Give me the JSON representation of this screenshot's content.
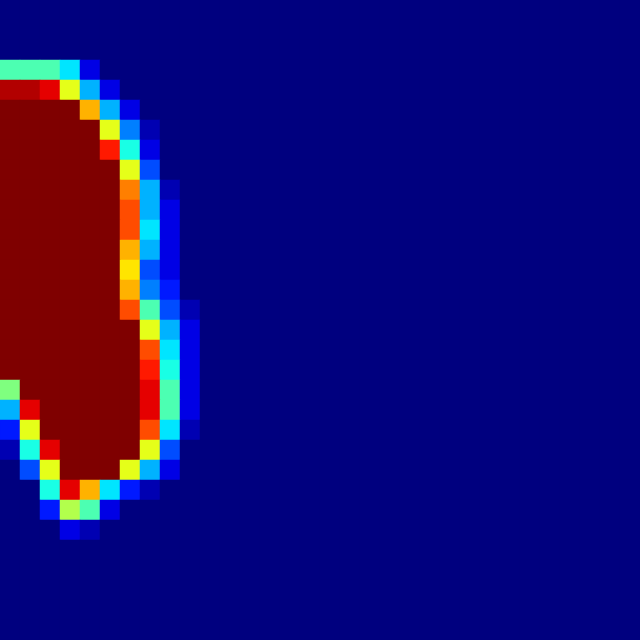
{
  "chart_data": {
    "type": "heatmap",
    "tick_labels": false,
    "cells": [
      [
        0,
        0,
        0,
        0,
        0,
        0,
        0,
        0,
        0,
        0,
        0,
        0,
        0,
        0,
        0,
        0,
        0,
        0,
        0,
        0,
        0,
        0,
        0,
        0,
        0,
        0,
        0,
        0,
        0,
        0,
        0,
        0
      ],
      [
        0,
        0,
        0,
        0,
        0,
        0,
        0,
        0,
        0,
        0,
        0,
        0,
        0,
        0,
        0,
        0,
        0,
        0,
        0,
        0,
        0,
        0,
        0,
        0,
        0,
        0,
        0,
        0,
        0,
        0,
        0,
        0
      ],
      [
        0,
        0,
        0,
        0,
        0,
        0,
        0,
        0,
        0,
        0,
        0,
        0,
        0,
        0,
        0,
        0,
        0,
        0,
        0,
        0,
        0,
        0,
        0,
        0,
        0,
        0,
        0,
        0,
        0,
        0,
        0,
        0
      ],
      [
        0.45,
        0.45,
        0.45,
        0.35,
        0.1,
        0,
        0,
        0,
        0,
        0,
        0,
        0,
        0,
        0,
        0,
        0,
        0,
        0,
        0,
        0,
        0,
        0,
        0,
        0,
        0,
        0,
        0,
        0,
        0,
        0,
        0,
        0
      ],
      [
        0.95,
        0.95,
        0.9,
        0.6,
        0.3,
        0.1,
        0,
        0,
        0,
        0,
        0,
        0,
        0,
        0,
        0,
        0,
        0,
        0,
        0,
        0,
        0,
        0,
        0,
        0,
        0,
        0,
        0,
        0,
        0,
        0,
        0,
        0
      ],
      [
        1,
        1,
        1,
        1,
        0.7,
        0.3,
        0.1,
        0,
        0,
        0,
        0,
        0,
        0,
        0,
        0,
        0,
        0,
        0,
        0,
        0,
        0,
        0,
        0,
        0,
        0,
        0,
        0,
        0,
        0,
        0,
        0,
        0
      ],
      [
        1,
        1,
        1,
        1,
        1,
        0.6,
        0.25,
        0.05,
        0,
        0,
        0,
        0,
        0,
        0,
        0,
        0,
        0,
        0,
        0,
        0,
        0,
        0,
        0,
        0,
        0,
        0,
        0,
        0,
        0,
        0,
        0,
        0
      ],
      [
        1,
        1,
        1,
        1,
        1,
        0.85,
        0.4,
        0.1,
        0,
        0,
        0,
        0,
        0,
        0,
        0,
        0,
        0,
        0,
        0,
        0,
        0,
        0,
        0,
        0,
        0,
        0,
        0,
        0,
        0,
        0,
        0,
        0
      ],
      [
        1,
        1,
        1,
        1,
        1,
        1,
        0.6,
        0.2,
        0,
        0,
        0,
        0,
        0,
        0,
        0,
        0,
        0,
        0,
        0,
        0,
        0,
        0,
        0,
        0,
        0,
        0,
        0,
        0,
        0,
        0,
        0,
        0
      ],
      [
        1,
        1,
        1,
        1,
        1,
        1,
        0.75,
        0.3,
        0.05,
        0,
        0,
        0,
        0,
        0,
        0,
        0,
        0,
        0,
        0,
        0,
        0,
        0,
        0,
        0,
        0,
        0,
        0,
        0,
        0,
        0,
        0,
        0
      ],
      [
        1,
        1,
        1,
        1,
        1,
        1,
        0.8,
        0.3,
        0.1,
        0,
        0,
        0,
        0,
        0,
        0,
        0,
        0,
        0,
        0,
        0,
        0,
        0,
        0,
        0,
        0,
        0,
        0,
        0,
        0,
        0,
        0,
        0
      ],
      [
        1,
        1,
        1,
        1,
        1,
        1,
        0.8,
        0.35,
        0.1,
        0,
        0,
        0,
        0,
        0,
        0,
        0,
        0,
        0,
        0,
        0,
        0,
        0,
        0,
        0,
        0,
        0,
        0,
        0,
        0,
        0,
        0,
        0
      ],
      [
        1,
        1,
        1,
        1,
        1,
        1,
        0.7,
        0.3,
        0.1,
        0,
        0,
        0,
        0,
        0,
        0,
        0,
        0,
        0,
        0,
        0,
        0,
        0,
        0,
        0,
        0,
        0,
        0,
        0,
        0,
        0,
        0,
        0
      ],
      [
        1,
        1,
        1,
        1,
        1,
        1,
        0.65,
        0.2,
        0.1,
        0,
        0,
        0,
        0,
        0,
        0,
        0,
        0,
        0,
        0,
        0,
        0,
        0,
        0,
        0,
        0,
        0,
        0,
        0,
        0,
        0,
        0,
        0
      ],
      [
        1,
        1,
        1,
        1,
        1,
        1,
        0.7,
        0.25,
        0.15,
        0,
        0,
        0,
        0,
        0,
        0,
        0,
        0,
        0,
        0,
        0,
        0,
        0,
        0,
        0,
        0,
        0,
        0,
        0,
        0,
        0,
        0,
        0
      ],
      [
        1,
        1,
        1,
        1,
        1,
        1,
        0.8,
        0.45,
        0.2,
        0.05,
        0,
        0,
        0,
        0,
        0,
        0,
        0,
        0,
        0,
        0,
        0,
        0,
        0,
        0,
        0,
        0,
        0,
        0,
        0,
        0,
        0,
        0
      ],
      [
        1,
        1,
        1,
        1,
        1,
        1,
        1,
        0.6,
        0.3,
        0.1,
        0,
        0,
        0,
        0,
        0,
        0,
        0,
        0,
        0,
        0,
        0,
        0,
        0,
        0,
        0,
        0,
        0,
        0,
        0,
        0,
        0,
        0
      ],
      [
        1,
        1,
        1,
        1,
        1,
        1,
        1,
        0.8,
        0.35,
        0.1,
        0,
        0,
        0,
        0,
        0,
        0,
        0,
        0,
        0,
        0,
        0,
        0,
        0,
        0,
        0,
        0,
        0,
        0,
        0,
        0,
        0,
        0
      ],
      [
        1,
        1,
        1,
        1,
        1,
        1,
        1,
        0.85,
        0.4,
        0.1,
        0,
        0,
        0,
        0,
        0,
        0,
        0,
        0,
        0,
        0,
        0,
        0,
        0,
        0,
        0,
        0,
        0,
        0,
        0,
        0,
        0,
        0
      ],
      [
        0.5,
        1,
        1,
        1,
        1,
        1,
        1,
        0.9,
        0.45,
        0.1,
        0,
        0,
        0,
        0,
        0,
        0,
        0,
        0,
        0,
        0,
        0,
        0,
        0,
        0,
        0,
        0,
        0,
        0,
        0,
        0,
        0,
        0
      ],
      [
        0.3,
        0.9,
        1,
        1,
        1,
        1,
        1,
        0.9,
        0.45,
        0.1,
        0,
        0,
        0,
        0,
        0,
        0,
        0,
        0,
        0,
        0,
        0,
        0,
        0,
        0,
        0,
        0,
        0,
        0,
        0,
        0,
        0,
        0
      ],
      [
        0.15,
        0.6,
        1,
        1,
        1,
        1,
        1,
        0.8,
        0.35,
        0.05,
        0,
        0,
        0,
        0,
        0,
        0,
        0,
        0,
        0,
        0,
        0,
        0,
        0,
        0,
        0,
        0,
        0,
        0,
        0,
        0,
        0,
        0
      ],
      [
        0.05,
        0.4,
        0.9,
        1,
        1,
        1,
        1,
        0.6,
        0.2,
        0,
        0,
        0,
        0,
        0,
        0,
        0,
        0,
        0,
        0,
        0,
        0,
        0,
        0,
        0,
        0,
        0,
        0,
        0,
        0,
        0,
        0,
        0
      ],
      [
        0,
        0.2,
        0.6,
        1,
        1,
        1,
        0.6,
        0.3,
        0.1,
        0,
        0,
        0,
        0,
        0,
        0,
        0,
        0,
        0,
        0,
        0,
        0,
        0,
        0,
        0,
        0,
        0,
        0,
        0,
        0,
        0,
        0,
        0
      ],
      [
        0,
        0,
        0.4,
        0.9,
        0.7,
        0.35,
        0.15,
        0.05,
        0,
        0,
        0,
        0,
        0,
        0,
        0,
        0,
        0,
        0,
        0,
        0,
        0,
        0,
        0,
        0,
        0,
        0,
        0,
        0,
        0,
        0,
        0,
        0
      ],
      [
        0,
        0,
        0.15,
        0.55,
        0.45,
        0.1,
        0,
        0,
        0,
        0,
        0,
        0,
        0,
        0,
        0,
        0,
        0,
        0,
        0,
        0,
        0,
        0,
        0,
        0,
        0,
        0,
        0,
        0,
        0,
        0,
        0,
        0
      ],
      [
        0,
        0,
        0,
        0.1,
        0.05,
        0,
        0,
        0,
        0,
        0,
        0,
        0,
        0,
        0,
        0,
        0,
        0,
        0,
        0,
        0,
        0,
        0,
        0,
        0,
        0,
        0,
        0,
        0,
        0,
        0,
        0,
        0
      ],
      [
        0,
        0,
        0,
        0,
        0,
        0,
        0,
        0,
        0,
        0,
        0,
        0,
        0,
        0,
        0,
        0,
        0,
        0,
        0,
        0,
        0,
        0,
        0,
        0,
        0,
        0,
        0,
        0,
        0,
        0,
        0,
        0
      ],
      [
        0,
        0,
        0,
        0,
        0,
        0,
        0,
        0,
        0,
        0,
        0,
        0,
        0,
        0,
        0,
        0,
        0,
        0,
        0,
        0,
        0,
        0,
        0,
        0,
        0,
        0,
        0,
        0,
        0,
        0,
        0,
        0
      ],
      [
        0,
        0,
        0,
        0,
        0,
        0,
        0,
        0,
        0,
        0,
        0,
        0,
        0,
        0,
        0,
        0,
        0,
        0,
        0,
        0,
        0,
        0,
        0,
        0,
        0,
        0,
        0,
        0,
        0,
        0,
        0,
        0
      ],
      [
        0,
        0,
        0,
        0,
        0,
        0,
        0,
        0,
        0,
        0,
        0,
        0,
        0,
        0,
        0,
        0,
        0,
        0,
        0,
        0,
        0,
        0,
        0,
        0,
        0,
        0,
        0,
        0,
        0,
        0,
        0,
        0
      ],
      [
        0,
        0,
        0,
        0,
        0,
        0,
        0,
        0,
        0,
        0,
        0,
        0,
        0,
        0,
        0,
        0,
        0,
        0,
        0,
        0,
        0,
        0,
        0,
        0,
        0,
        0,
        0,
        0,
        0,
        0,
        0,
        0
      ]
    ]
  }
}
